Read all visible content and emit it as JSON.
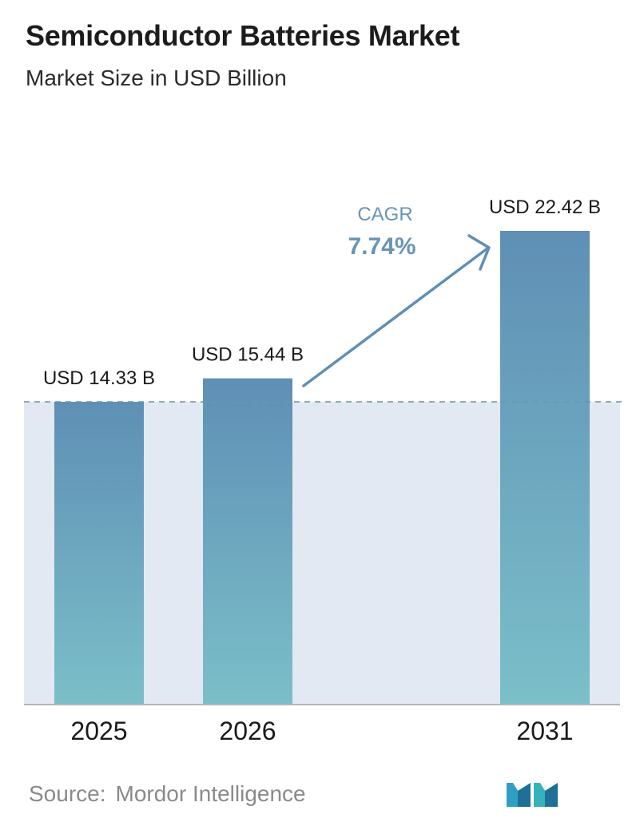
{
  "header": {
    "title": "Semiconductor Batteries Market",
    "subtitle": "Market Size in USD Billion"
  },
  "chart_data": {
    "type": "bar",
    "categories": [
      "2025",
      "2026",
      "2031"
    ],
    "values": [
      14.33,
      15.44,
      22.42
    ],
    "value_labels": [
      "USD 14.33 B",
      "USD 15.44 B",
      "USD 22.42 B"
    ],
    "annotation": {
      "label": "CAGR",
      "value": "7.74%"
    },
    "colors": {
      "bar_top": "#5f8fb5",
      "bar_bottom": "#7bbfc9",
      "band": "#e3e9f2",
      "reference_line": "#6a94b5",
      "arrow": "#5f8fb5",
      "annotation_text": "#6a94b5"
    },
    "reference_line_at": 14.33,
    "grid": false,
    "legend": "none"
  },
  "footer": {
    "source_label": "Source:",
    "source_name": "Mordor Intelligence",
    "logo_icon": "mordor-intelligence-logo-icon"
  }
}
